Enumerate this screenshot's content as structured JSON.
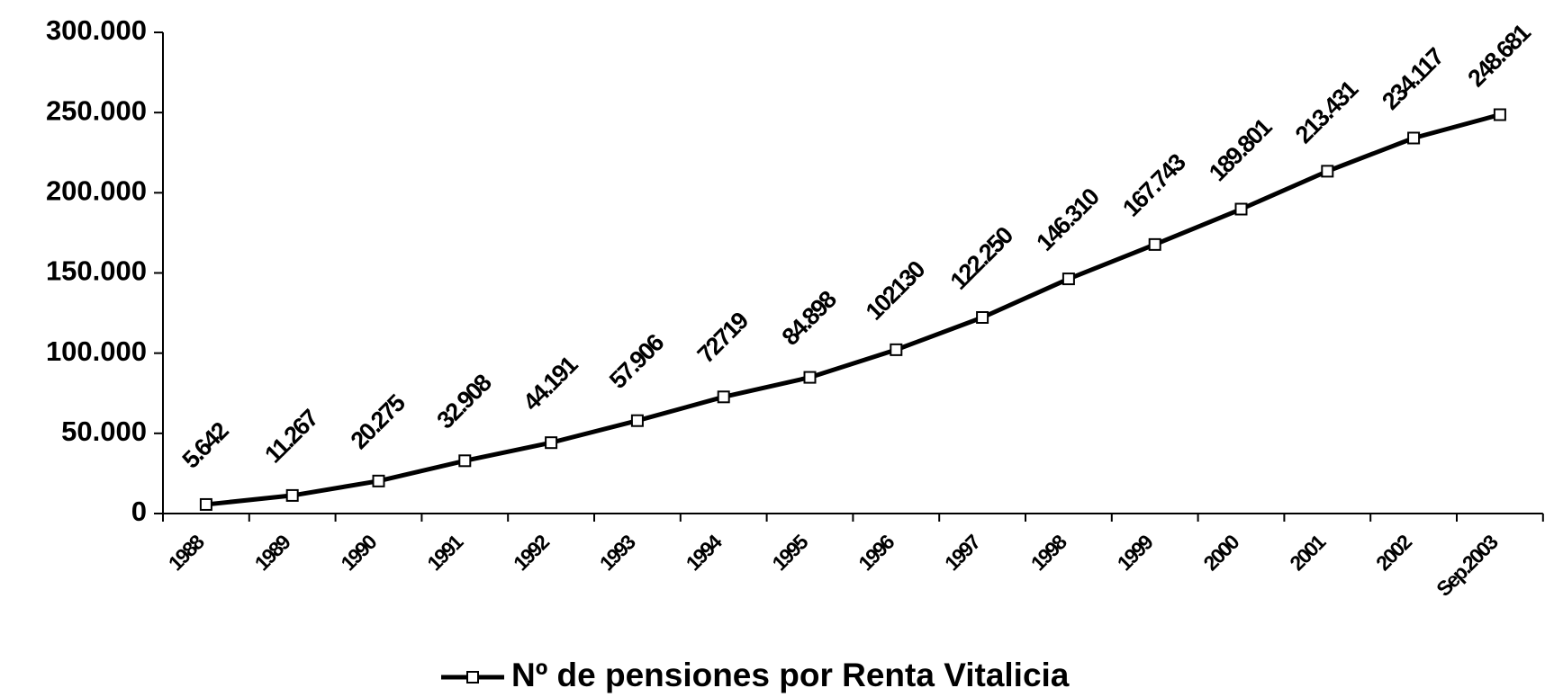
{
  "chart_data": {
    "type": "line",
    "categories": [
      "1988",
      "1989",
      "1990",
      "1991",
      "1992",
      "1993",
      "1994",
      "1995",
      "1996",
      "1997",
      "1998",
      "1999",
      "2000",
      "2001",
      "2002",
      "Sep.2003"
    ],
    "series": [
      {
        "name": "Nº de pensiones por Renta Vitalicia",
        "color": "#000000",
        "values": [
          5642,
          11267,
          20275,
          32908,
          44191,
          57906,
          72719,
          84898,
          102130,
          122250,
          146310,
          167743,
          189801,
          213431,
          234117,
          248681
        ],
        "value_labels": [
          "5.642",
          "11.267",
          "20.275",
          "32.908",
          "44.191",
          "57.906",
          "72719",
          "84.898",
          "102130",
          "122.250",
          "146.310",
          "167.743",
          "189.801",
          "213.431",
          "234.117",
          "248.681"
        ]
      }
    ],
    "ylim": [
      0,
      300000
    ],
    "yticks": [
      0,
      {
        "value": 50000,
        "label": "50.000"
      },
      {
        "value": 100000,
        "label": "100.000"
      },
      {
        "value": 150000,
        "label": "150.000"
      },
      {
        "value": 200000,
        "label": "200.000"
      },
      {
        "value": 250000,
        "label": "250.000"
      },
      {
        "value": 300000,
        "label": "300.000"
      }
    ],
    "legend": "bottom"
  }
}
